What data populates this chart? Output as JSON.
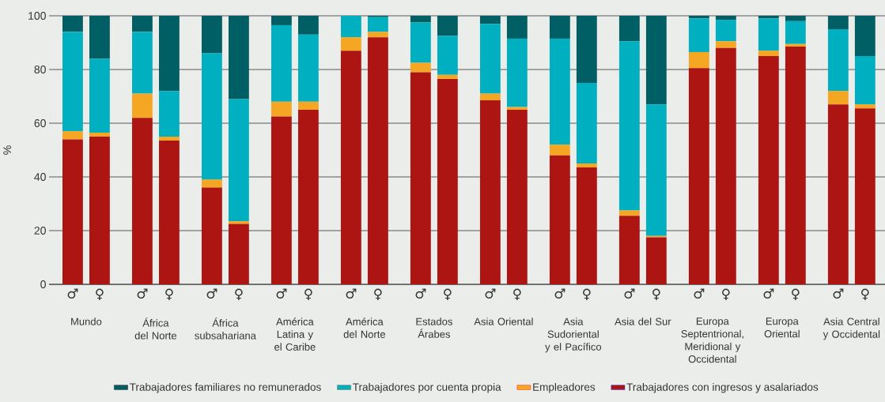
{
  "chart_data": {
    "type": "bar",
    "stacked": true,
    "ylabel": "%",
    "categories": [
      "♂",
      "♀",
      "♂",
      "♀",
      "♂",
      "♀",
      "♂",
      "♀",
      "♂",
      "♀",
      "♂",
      "♀",
      "♂",
      "♀",
      "♂",
      "♀",
      "♂",
      "♀",
      "♂",
      "♀",
      "♂",
      "♀",
      "♂",
      "♀"
    ],
    "annotations": [
      "Mundo",
      "África del Norte",
      "África subsahariana",
      "América Latina y el Caribe",
      "América del Norte",
      "Estados Árabes",
      "Asia Oriental",
      "Asia Sudoriental y el Pacífico",
      "Asia del Sur",
      "Europa Septentrional, Meridional y Occidental",
      "Europa Oriental",
      "Asia Central y Occidental"
    ],
    "series": [
      {
        "name": "Trabajadores con ingresos y asalariados",
        "color": "#ad1513",
        "values": [
          54,
          55,
          62,
          53.5,
          36,
          22.5,
          62.5,
          65,
          87,
          92,
          79,
          76.5,
          68.5,
          65,
          48,
          43.5,
          25.5,
          17.5,
          80.5,
          88,
          85,
          88.5,
          67,
          65.5
        ]
      },
      {
        "name": "Empleadores",
        "color": "#f5a623",
        "values": [
          3,
          1.5,
          9,
          1.5,
          3,
          1,
          5.5,
          3,
          5,
          2,
          3.5,
          1.5,
          2.5,
          1,
          4,
          1.5,
          2,
          0.5,
          6,
          2.5,
          2,
          1,
          5,
          1.5
        ]
      },
      {
        "name": "Trabajadores por cuenta propia",
        "color": "#00afc0",
        "values": [
          37,
          27.5,
          23,
          17,
          47,
          45.5,
          28.5,
          25,
          8,
          5.5,
          15,
          14.5,
          26,
          25.5,
          39.5,
          30,
          63,
          49,
          12.5,
          8,
          12,
          8.5,
          23,
          18
        ]
      },
      {
        "name": "Trabajadores familiares no remunerados",
        "color": "#005f64",
        "values": [
          6,
          16,
          6,
          28,
          14,
          31,
          3.5,
          7,
          0,
          0.5,
          2.5,
          7.5,
          3,
          8.5,
          8.5,
          25,
          9.5,
          33,
          1,
          1.5,
          1,
          2,
          5,
          15
        ]
      }
    ],
    "ylim": [
      0,
      100
    ],
    "yticks": [
      0,
      20,
      40,
      60,
      80,
      100
    ],
    "grid": "y",
    "legend": "bottom"
  }
}
